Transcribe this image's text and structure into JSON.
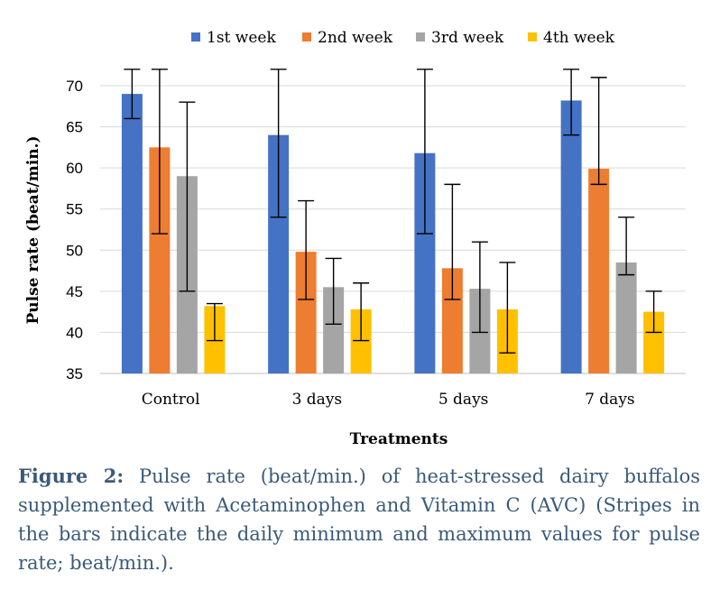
{
  "chart_data": {
    "type": "bar",
    "categories": [
      "Control",
      "3 days",
      "5 days",
      "7 days"
    ],
    "series": [
      {
        "name": "1st week",
        "color": "#4472C4",
        "values": [
          69,
          64,
          61.8,
          68.2
        ],
        "min": [
          66,
          54,
          52,
          64
        ],
        "max": [
          72,
          72,
          72,
          72
        ]
      },
      {
        "name": "2nd week",
        "color": "#ED7D31",
        "values": [
          62.5,
          49.8,
          47.8,
          59.9
        ],
        "min": [
          52,
          44,
          44,
          58
        ],
        "max": [
          72,
          56,
          58,
          71
        ]
      },
      {
        "name": "3rd week",
        "color": "#A5A5A5",
        "values": [
          59,
          45.5,
          45.3,
          48.5
        ],
        "min": [
          45,
          41,
          40,
          47
        ],
        "max": [
          68,
          49,
          51,
          54
        ]
      },
      {
        "name": "4th week",
        "color": "#FFC000",
        "values": [
          43.2,
          42.8,
          42.8,
          42.5
        ],
        "min": [
          39,
          39,
          37.5,
          40
        ],
        "max": [
          43.5,
          46,
          48.5,
          45
        ]
      }
    ],
    "ylabel": "Pulse rate (beat/min.)",
    "xlabel": "Treatments",
    "ylim": [
      35,
      72
    ],
    "yticks": [
      "35",
      "40",
      "45",
      "50",
      "55",
      "60",
      "65",
      "70"
    ],
    "grid": true,
    "legend": "top"
  },
  "caption": {
    "label": "Figure 2:",
    "text": "Pulse rate (beat/min.) of heat-stressed dairy buffalos supplemented with Acetaminophen and Vitamin C (AVC) (Stripes in the bars indicate the daily minimum and maximum values for pulse rate; beat/min.)."
  }
}
